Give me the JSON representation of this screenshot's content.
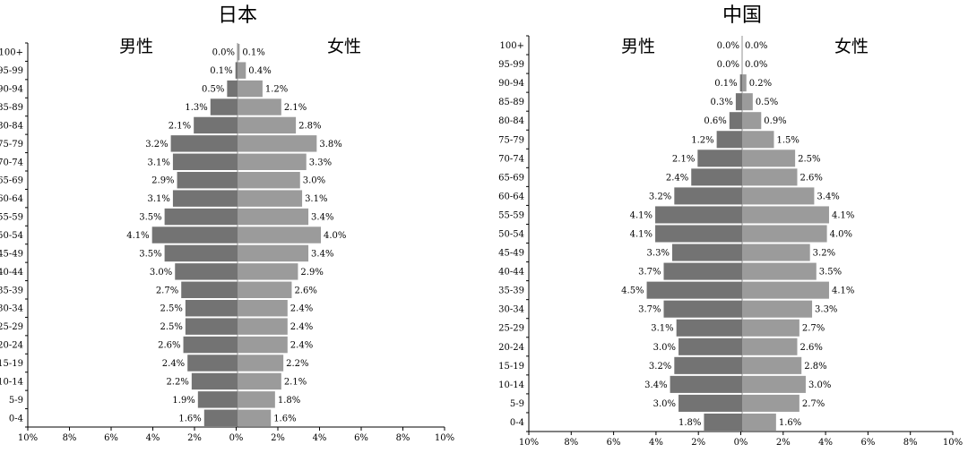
{
  "chart_data": [
    {
      "type": "bar",
      "orientation": "horizontal",
      "title": "日本",
      "left_label": "男性",
      "right_label": "女性",
      "categories": [
        "100+",
        "95-99",
        "90-94",
        "85-89",
        "80-84",
        "75-79",
        "70-74",
        "65-69",
        "60-64",
        "55-59",
        "50-54",
        "45-49",
        "40-44",
        "35-39",
        "30-34",
        "25-29",
        "20-24",
        "15-19",
        "10-14",
        "5-9",
        "0-4"
      ],
      "series": [
        {
          "name": "男性",
          "values": [
            0.0,
            0.1,
            0.5,
            1.3,
            2.1,
            3.2,
            3.1,
            2.9,
            3.1,
            3.5,
            4.1,
            3.5,
            3.0,
            2.7,
            2.5,
            2.5,
            2.6,
            2.4,
            2.2,
            1.9,
            1.6
          ],
          "labels": [
            "0.0%",
            "0.1%",
            "0.5%",
            "1.3%",
            "2.1%",
            "3.2%",
            "3.1%",
            "2.9%",
            "3.1%",
            "3.5%",
            "4.1%",
            "3.5%",
            "3.0%",
            "2.7%",
            "2.5%",
            "2.5%",
            "2.6%",
            "2.4%",
            "2.2%",
            "1.9%",
            "1.6%"
          ]
        },
        {
          "name": "女性",
          "values": [
            0.1,
            0.4,
            1.2,
            2.1,
            2.8,
            3.8,
            3.3,
            3.0,
            3.1,
            3.4,
            4.0,
            3.4,
            2.9,
            2.6,
            2.4,
            2.4,
            2.4,
            2.2,
            2.1,
            1.8,
            1.6
          ],
          "labels": [
            "0.1%",
            "0.4%",
            "1.2%",
            "2.1%",
            "2.8%",
            "3.8%",
            "3.3%",
            "3.0%",
            "3.1%",
            "3.4%",
            "4.0%",
            "3.4%",
            "2.9%",
            "2.6%",
            "2.4%",
            "2.4%",
            "2.4%",
            "2.2%",
            "2.1%",
            "1.8%",
            "1.6%"
          ]
        }
      ],
      "xlim": [
        -10,
        10
      ],
      "xticks": [
        "10%",
        "8%",
        "6%",
        "4%",
        "2%",
        "0%",
        "2%",
        "4%",
        "6%",
        "8%",
        "10%"
      ],
      "colors": {
        "male": "#737373",
        "female": "#9b9b9b"
      }
    },
    {
      "type": "bar",
      "orientation": "horizontal",
      "title": "中国",
      "left_label": "男性",
      "right_label": "女性",
      "categories": [
        "100+",
        "95-99",
        "90-94",
        "85-89",
        "80-84",
        "75-79",
        "70-74",
        "65-69",
        "60-64",
        "55-59",
        "50-54",
        "45-49",
        "40-44",
        "35-39",
        "30-34",
        "25-29",
        "20-24",
        "15-19",
        "10-14",
        "5-9",
        "0-4"
      ],
      "series": [
        {
          "name": "男性",
          "values": [
            0.0,
            0.0,
            0.1,
            0.3,
            0.6,
            1.2,
            2.1,
            2.4,
            3.2,
            4.1,
            4.1,
            3.3,
            3.7,
            4.5,
            3.7,
            3.1,
            3.0,
            3.2,
            3.4,
            3.0,
            1.8
          ],
          "labels": [
            "0.0%",
            "0.0%",
            "0.1%",
            "0.3%",
            "0.6%",
            "1.2%",
            "2.1%",
            "2.4%",
            "3.2%",
            "4.1%",
            "4.1%",
            "3.3%",
            "3.7%",
            "4.5%",
            "3.7%",
            "3.1%",
            "3.0%",
            "3.2%",
            "3.4%",
            "3.0%",
            "1.8%"
          ]
        },
        {
          "name": "女性",
          "values": [
            0.0,
            0.0,
            0.2,
            0.5,
            0.9,
            1.5,
            2.5,
            2.6,
            3.4,
            4.1,
            4.0,
            3.2,
            3.5,
            4.1,
            3.3,
            2.7,
            2.6,
            2.8,
            3.0,
            2.7,
            1.6
          ],
          "labels": [
            "0.0%",
            "0.0%",
            "0.2%",
            "0.5%",
            "0.9%",
            "1.5%",
            "2.5%",
            "2.6%",
            "3.4%",
            "4.1%",
            "4.0%",
            "3.2%",
            "3.5%",
            "4.1%",
            "3.3%",
            "2.7%",
            "2.6%",
            "2.8%",
            "3.0%",
            "2.7%",
            "1.6%"
          ]
        }
      ],
      "xlim": [
        -10,
        10
      ],
      "xticks": [
        "10%",
        "8%",
        "6%",
        "4%",
        "2%",
        "0%",
        "2%",
        "4%",
        "6%",
        "8%",
        "10%"
      ],
      "colors": {
        "male": "#737373",
        "female": "#9b9b9b"
      }
    }
  ]
}
